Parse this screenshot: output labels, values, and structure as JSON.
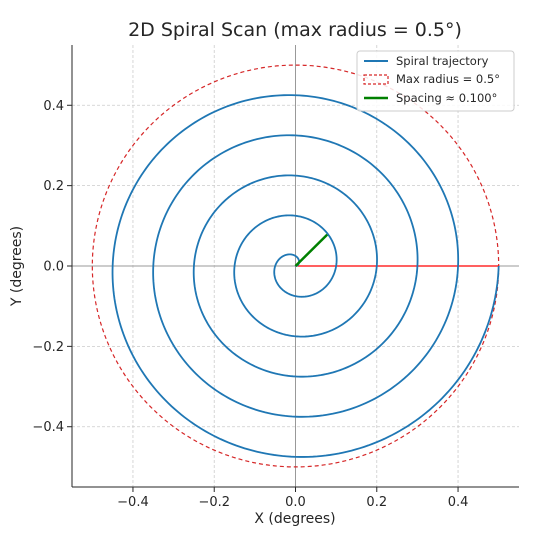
{
  "chart_data": {
    "type": "line",
    "title": "2D Spiral Scan (max radius = 0.5°)",
    "xlabel": "X (degrees)",
    "ylabel": "Y (degrees)",
    "xlim": [
      -0.55,
      0.55
    ],
    "ylim": [
      -0.55,
      0.55
    ],
    "xticks": [
      -0.4,
      -0.2,
      0.0,
      0.2,
      0.4
    ],
    "yticks": [
      -0.4,
      -0.2,
      0.0,
      0.2,
      0.4
    ],
    "xtick_labels": [
      "−0.4",
      "−0.2",
      "0.0",
      "0.2",
      "0.4"
    ],
    "ytick_labels": [
      "−0.4",
      "−0.2",
      "0.0",
      "0.2",
      "0.4"
    ],
    "grid": true,
    "legend_position": "top-right",
    "series": [
      {
        "name": "Spiral trajectory",
        "kind": "archimedean-spiral",
        "r_start": 0.0,
        "r_end": 0.5,
        "turns": 5,
        "spacing": 0.1,
        "color": "#1f77b4"
      },
      {
        "name": "Max radius = 0.5°",
        "kind": "circle",
        "radius": 0.5,
        "style": "dashed",
        "color": "#d62728"
      },
      {
        "name": "Spacing ≈ 0.100°",
        "kind": "segment",
        "from": [
          0.0,
          0.0
        ],
        "to": [
          0.078,
          0.078
        ],
        "color": "#008000"
      }
    ],
    "annotations": [
      {
        "kind": "segment",
        "from": [
          0.0,
          0.0
        ],
        "to": [
          0.5,
          0.0
        ],
        "color": "#ff0000"
      }
    ],
    "reference_lines": {
      "x": 0.0,
      "y": 0.0,
      "color": "#999999"
    }
  }
}
